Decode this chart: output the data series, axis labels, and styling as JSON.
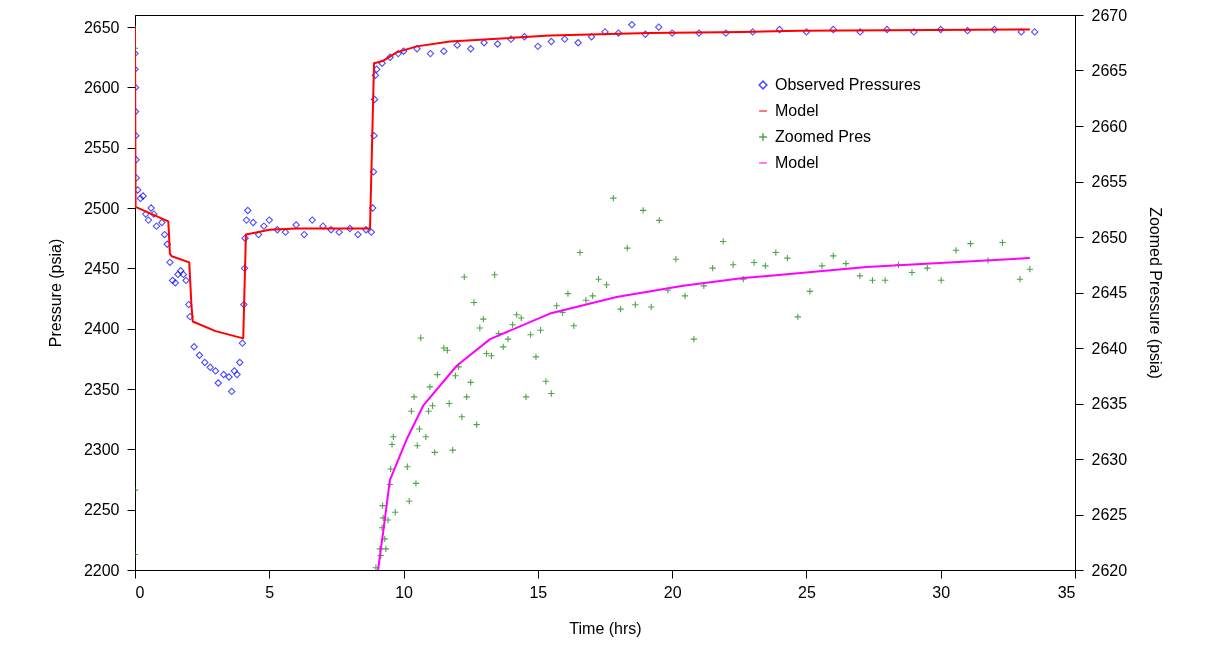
{
  "chart_data": {
    "type": "scatter",
    "xlabel": "Time (hrs)",
    "ylabel": "Pressure (psia)",
    "y2label": "Zoomed Pressure (psia)",
    "xlim": [
      0,
      35
    ],
    "xticks": [
      0,
      5,
      10,
      15,
      20,
      25,
      30,
      35
    ],
    "ylim": [
      2200,
      2660
    ],
    "yticks": [
      2200,
      2250,
      2300,
      2350,
      2400,
      2450,
      2500,
      2550,
      2600,
      2650
    ],
    "y2lim": [
      2620,
      2670
    ],
    "y2ticks": [
      2620,
      2625,
      2630,
      2635,
      2640,
      2645,
      2650,
      2655,
      2660,
      2665,
      2670
    ],
    "grid": false,
    "legend": "top right",
    "series": [
      {
        "name": "Observed Pressures",
        "type": "scatter",
        "marker": "diamond",
        "color": "#0000ff",
        "x": [
          0.0,
          0.0,
          0.02,
          0.02,
          0.03,
          0.04,
          0.05,
          0.1,
          0.2,
          0.3,
          0.4,
          0.5,
          0.6,
          0.7,
          0.8,
          1.0,
          1.1,
          1.2,
          1.3,
          1.4,
          1.5,
          1.6,
          1.7,
          1.8,
          1.9,
          2.0,
          2.05,
          2.2,
          2.4,
          2.6,
          2.8,
          3.0,
          3.1,
          3.3,
          3.5,
          3.6,
          3.7,
          3.8,
          3.9,
          4.0,
          4.05,
          4.08,
          4.1,
          4.15,
          4.2,
          4.4,
          4.6,
          4.8,
          5.0,
          5.3,
          5.6,
          6.0,
          6.3,
          6.6,
          7.0,
          7.3,
          7.6,
          8.0,
          8.3,
          8.6,
          8.8,
          8.85,
          8.88,
          8.9,
          8.92,
          8.95,
          9.0,
          9.2,
          9.5,
          9.8,
          10.0,
          10.5,
          11.0,
          11.5,
          12.0,
          12.5,
          13.0,
          13.5,
          14.0,
          14.5,
          15.0,
          15.5,
          16.0,
          16.5,
          17.0,
          17.5,
          18.0,
          18.5,
          19.0,
          19.5,
          20.0,
          21.0,
          22.0,
          23.0,
          24.0,
          25.0,
          26.0,
          27.0,
          28.0,
          29.0,
          30.0,
          31.0,
          32.0,
          33.0,
          33.5
        ],
        "values": [
          2628,
          2615,
          2600,
          2580,
          2560,
          2540,
          2525,
          2515,
          2508,
          2510,
          2495,
          2490,
          2500,
          2495,
          2485,
          2488,
          2478,
          2470,
          2455,
          2440,
          2438,
          2445,
          2448,
          2445,
          2440,
          2420,
          2410,
          2385,
          2378,
          2372,
          2368,
          2365,
          2355,
          2362,
          2360,
          2348,
          2365,
          2362,
          2372,
          2388,
          2420,
          2450,
          2475,
          2490,
          2498,
          2488,
          2478,
          2485,
          2490,
          2482,
          2480,
          2486,
          2478,
          2490,
          2485,
          2482,
          2480,
          2483,
          2478,
          2482,
          2480,
          2500,
          2530,
          2560,
          2590,
          2610,
          2615,
          2620,
          2625,
          2628,
          2630,
          2632,
          2628,
          2630,
          2635,
          2632,
          2637,
          2636,
          2640,
          2642,
          2634,
          2638,
          2640,
          2637,
          2642,
          2646,
          2645,
          2652,
          2644,
          2650,
          2645,
          2645,
          2645,
          2646,
          2648,
          2646,
          2648,
          2646,
          2648,
          2646,
          2648,
          2647,
          2648,
          2646,
          2646
        ]
      },
      {
        "name": "Model",
        "type": "line",
        "marker": "none",
        "color": "#ff0000",
        "x": [
          0.0,
          0.02,
          1.24,
          1.3,
          1.37,
          2.02,
          2.1,
          2.15,
          3.0,
          4.03,
          4.13,
          5.0,
          6.0,
          8.75,
          8.9,
          9.24,
          9.74,
          10.49,
          11.73,
          15.45,
          19.17,
          22.64,
          24.76,
          33.32
        ],
        "values": [
          2651,
          2501,
          2489,
          2462,
          2460,
          2455,
          2420,
          2406,
          2398,
          2392,
          2478,
          2482,
          2483,
          2483,
          2620,
          2622,
          2629,
          2634,
          2638,
          2643,
          2645,
          2646,
          2647,
          2648
        ]
      },
      {
        "name": "Zoomed Pres",
        "type": "scatter",
        "marker": "cross",
        "color": "#008000",
        "axis": "y2",
        "x": [
          0.0,
          0.0,
          0.0,
          8.97,
          9.12,
          9.15,
          9.2,
          9.22,
          9.24,
          9.3,
          9.34,
          9.42,
          9.49,
          9.52,
          9.57,
          9.62,
          9.69,
          10.14,
          10.21,
          10.29,
          10.39,
          10.46,
          10.51,
          10.59,
          10.64,
          10.83,
          10.93,
          10.98,
          11.08,
          11.16,
          11.26,
          11.5,
          11.63,
          11.7,
          11.83,
          11.93,
          12.05,
          12.17,
          12.26,
          12.35,
          12.5,
          12.62,
          12.72,
          12.84,
          12.97,
          13.09,
          13.27,
          13.39,
          13.54,
          13.71,
          13.89,
          14.06,
          14.21,
          14.38,
          14.56,
          14.73,
          14.93,
          15.1,
          15.3,
          15.5,
          15.7,
          15.92,
          16.12,
          16.34,
          16.57,
          16.79,
          17.04,
          17.26,
          17.56,
          17.81,
          18.08,
          18.33,
          18.63,
          18.92,
          19.22,
          19.52,
          19.84,
          20.14,
          20.48,
          20.81,
          21.18,
          21.51,
          21.9,
          22.27,
          22.65,
          23.05,
          23.47,
          23.86,
          24.29,
          24.68,
          25.13,
          25.58,
          26.0,
          26.47,
          26.99,
          27.46,
          27.93,
          28.43,
          28.93,
          29.5,
          30.02,
          30.57,
          31.11,
          31.76,
          32.3,
          32.95,
          33.32
        ],
        "values": [
          2667,
          2627.2,
          2621.4,
          2620.2,
          2621.9,
          2621.3,
          2623.8,
          2625.8,
          2624.7,
          2622.8,
          2621.9,
          2624.5,
          2627.7,
          2629.1,
          2631.3,
          2632.0,
          2625.2,
          2629.3,
          2626.2,
          2634.3,
          2635.6,
          2627.8,
          2631.2,
          2632.7,
          2640.9,
          2632.0,
          2634.3,
          2636.5,
          2634.8,
          2630.6,
          2637.6,
          2640.0,
          2639.8,
          2635.0,
          2630.8,
          2637.5,
          2638.3,
          2633.8,
          2646.4,
          2635.6,
          2636.9,
          2644.1,
          2633.1,
          2641.8,
          2642.6,
          2639.5,
          2639.3,
          2646.6,
          2641.3,
          2640.1,
          2640.8,
          2642.1,
          2643.0,
          2642.7,
          2635.6,
          2641.2,
          2639.2,
          2641.6,
          2637.0,
          2635.9,
          2643.8,
          2643.2,
          2644.9,
          2642.0,
          2648.6,
          2644.3,
          2644.7,
          2646.2,
          2645.7,
          2653.5,
          2643.5,
          2649.0,
          2643.9,
          2652.4,
          2643.7,
          2651.5,
          2645.2,
          2648.0,
          2644.7,
          2640.8,
          2645.6,
          2647.2,
          2649.6,
          2647.5,
          2646.2,
          2647.7,
          2647.4,
          2648.6,
          2648.1,
          2642.8,
          2645.1,
          2647.4,
          2648.3,
          2647.6,
          2646.5,
          2646.1,
          2646.1,
          2647.5,
          2646.8,
          2647.2,
          2646.1,
          2648.8,
          2649.4,
          2647.9,
          2649.5,
          2646.2,
          2647.1
        ]
      },
      {
        "name": "Model",
        "type": "line",
        "marker": "none",
        "color": "#ff00ff",
        "axis": "y2",
        "x": [
          9.05,
          9.25,
          9.49,
          10.12,
          10.73,
          11.98,
          13.22,
          15.45,
          17.93,
          20.41,
          22.65,
          27.24,
          33.32
        ],
        "values": [
          2620,
          2623.6,
          2628.1,
          2631.8,
          2634.8,
          2638.4,
          2640.8,
          2643.1,
          2644.6,
          2645.6,
          2646.3,
          2647.3,
          2648.1
        ]
      }
    ]
  }
}
